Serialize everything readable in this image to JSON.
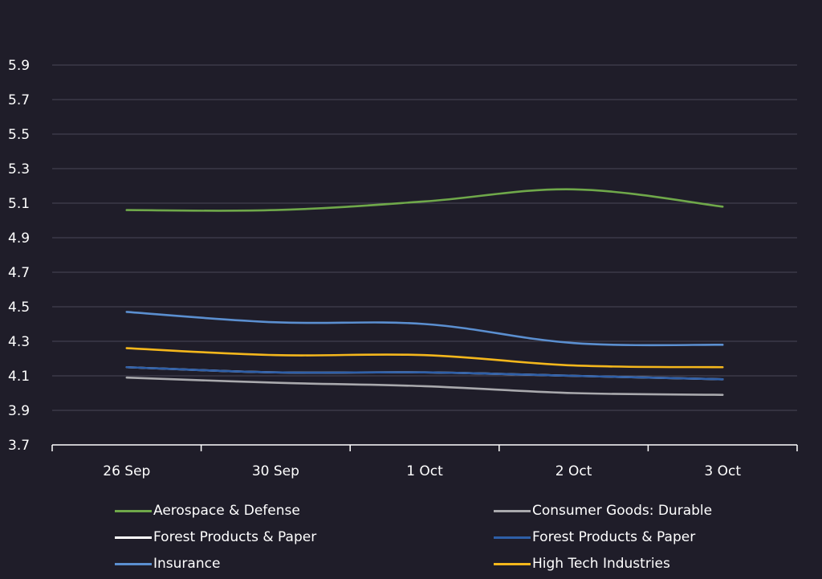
{
  "chart_data": {
    "type": "line",
    "categories": [
      "26 Sep",
      "30 Sep",
      "1 Oct",
      "2 Oct",
      "3 Oct"
    ],
    "ylim": [
      3.7,
      5.9
    ],
    "yticks": [
      "5.9",
      "5.7",
      "5.5",
      "5.3",
      "5.1",
      "4.9",
      "4.7",
      "4.5",
      "4.3",
      "4.1",
      "3.9",
      "3.7"
    ],
    "grid": true,
    "legend_position": "bottom",
    "series": [
      {
        "name": "Aerospace & Defense",
        "color": "#6fa84a",
        "values": [
          5.06,
          5.06,
          5.11,
          5.18,
          5.08
        ]
      },
      {
        "name": "Consumer Goods: Durable",
        "color": "#a9a9ad",
        "values": [
          4.09,
          4.06,
          4.04,
          4.0,
          3.99
        ]
      },
      {
        "name": "Forest Products & Paper",
        "color": "#ffffff",
        "values": [
          4.15,
          4.12,
          4.12,
          4.1,
          4.08
        ]
      },
      {
        "name": "Forest Products & Paper",
        "color": "#2e5fa8",
        "values": [
          4.15,
          4.12,
          4.12,
          4.1,
          4.08
        ]
      },
      {
        "name": "Insurance",
        "color": "#5b8fd0",
        "values": [
          4.47,
          4.41,
          4.4,
          4.29,
          4.28
        ]
      },
      {
        "name": "High Tech Industries",
        "color": "#f4b71c",
        "values": [
          4.26,
          4.22,
          4.22,
          4.16,
          4.15
        ]
      }
    ]
  }
}
